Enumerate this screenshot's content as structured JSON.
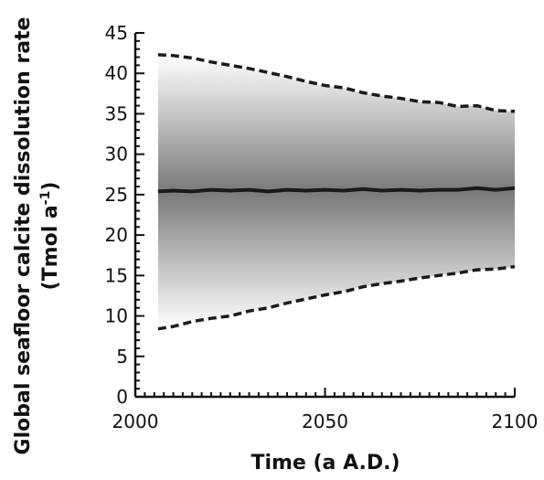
{
  "chart_data": {
    "type": "line",
    "xlabel": "Time (a A.D.)",
    "ylabel_line1": "Global seafloor calcite dissolution rate",
    "ylabel_line2_main": "(Tmol a",
    "ylabel_line2_sup": "-1",
    "ylabel_line2_end": ")",
    "xlim": [
      2000,
      2100
    ],
    "ylim": [
      0,
      45
    ],
    "x_ticks": [
      2000,
      2050,
      2100
    ],
    "y_ticks": [
      0,
      5,
      10,
      15,
      20,
      25,
      30,
      35,
      40,
      45
    ],
    "grid": false,
    "legend": "none",
    "colors": {
      "band_edge": "#ffffff",
      "band_center": "#7a7a7a",
      "line": "#1a1a1a"
    },
    "series": [
      {
        "style": "dashed",
        "x": [
          2006,
          2010,
          2015,
          2020,
          2025,
          2030,
          2035,
          2040,
          2045,
          2050,
          2055,
          2060,
          2065,
          2070,
          2075,
          2080,
          2085,
          2090,
          2095,
          2100
        ],
        "values": [
          42.3,
          42.2,
          41.9,
          41.4,
          41.0,
          40.6,
          40.1,
          39.6,
          39.0,
          38.5,
          38.2,
          37.6,
          37.2,
          36.9,
          36.5,
          36.4,
          35.9,
          36.0,
          35.4,
          35.3
        ]
      },
      {
        "style": "solid",
        "x": [
          2006,
          2010,
          2015,
          2020,
          2025,
          2030,
          2035,
          2040,
          2045,
          2050,
          2055,
          2060,
          2065,
          2070,
          2075,
          2080,
          2085,
          2090,
          2095,
          2100
        ],
        "values": [
          25.4,
          25.5,
          25.4,
          25.6,
          25.5,
          25.6,
          25.4,
          25.6,
          25.5,
          25.6,
          25.5,
          25.7,
          25.5,
          25.6,
          25.5,
          25.6,
          25.6,
          25.8,
          25.6,
          25.8
        ]
      },
      {
        "style": "dashed",
        "x": [
          2006,
          2010,
          2015,
          2020,
          2025,
          2030,
          2035,
          2040,
          2045,
          2050,
          2055,
          2060,
          2065,
          2070,
          2075,
          2080,
          2085,
          2090,
          2095,
          2100
        ],
        "values": [
          8.4,
          8.7,
          9.3,
          9.7,
          10.0,
          10.6,
          11.0,
          11.6,
          12.1,
          12.6,
          13.0,
          13.6,
          14.0,
          14.3,
          14.7,
          15.0,
          15.3,
          15.7,
          15.8,
          16.1
        ]
      }
    ]
  }
}
